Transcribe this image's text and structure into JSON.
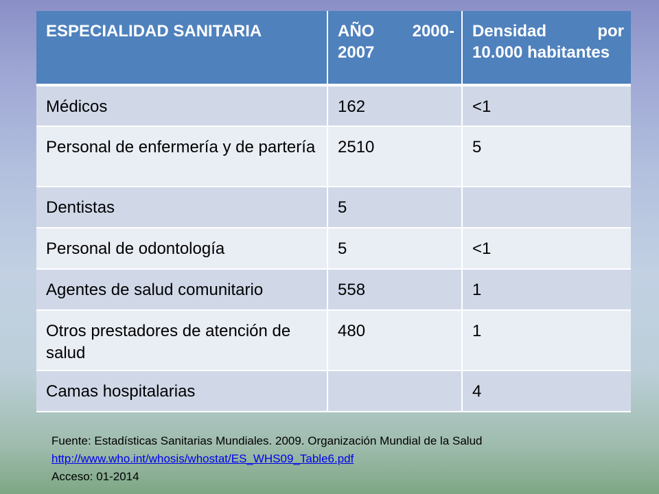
{
  "table": {
    "headers": [
      "ESPECIALIDAD SANITARIA",
      "AÑO 2000-2007",
      "Densidad por 10.000 habitantes"
    ],
    "rows": [
      [
        "Médicos",
        "162",
        "<1"
      ],
      [
        "Personal de enfermería y de partería",
        "2510",
        "5"
      ],
      [
        "Dentistas",
        "5",
        ""
      ],
      [
        "Personal de odontología",
        "5",
        "<1"
      ],
      [
        "Agentes de salud comunitario",
        "558",
        "1"
      ],
      [
        "Otros prestadores de atención de salud",
        "480",
        "1"
      ],
      [
        "Camas hospitalarias",
        "",
        "4"
      ]
    ]
  },
  "source": {
    "label": "Fuente",
    "text": ": Estadísticas Sanitarias Mundiales. 2009. Organización Mundial de la Salud",
    "link": " http://www.who.int/whosis/whostat/ES_WHS09_Table6.pdf",
    "access": "Acceso: 01-2014"
  },
  "colors": {
    "header_bg": "#4f81bd",
    "row_odd_bg": "#d0d8e8",
    "row_even_bg": "#e9edf4",
    "link": "#0000ee"
  }
}
